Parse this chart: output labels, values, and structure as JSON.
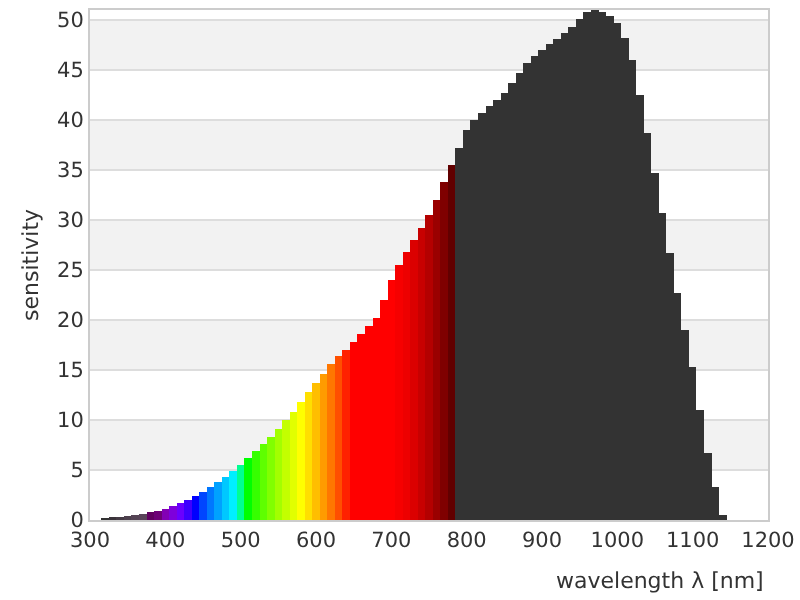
{
  "chart_data": {
    "type": "bar",
    "xlabel": "wavelength λ [nm]",
    "ylabel": "sensitivity",
    "x": [
      320,
      330,
      340,
      350,
      360,
      370,
      380,
      390,
      400,
      410,
      420,
      430,
      440,
      450,
      460,
      470,
      480,
      490,
      500,
      510,
      520,
      530,
      540,
      550,
      560,
      570,
      580,
      590,
      600,
      610,
      620,
      630,
      640,
      650,
      660,
      670,
      680,
      690,
      700,
      710,
      720,
      730,
      740,
      750,
      760,
      770,
      780,
      790,
      800,
      810,
      820,
      830,
      840,
      850,
      860,
      870,
      880,
      890,
      900,
      910,
      920,
      930,
      940,
      950,
      960,
      970,
      980,
      990,
      1000,
      1010,
      1020,
      1030,
      1040,
      1050,
      1060,
      1070,
      1080,
      1090,
      1100,
      1110,
      1120,
      1130,
      1140
    ],
    "values": [
      0.2,
      0.3,
      0.3,
      0.4,
      0.5,
      0.6,
      0.8,
      0.9,
      1.1,
      1.4,
      1.7,
      2.0,
      2.4,
      2.8,
      3.3,
      3.8,
      4.3,
      4.9,
      5.5,
      6.2,
      6.9,
      7.6,
      8.3,
      9.1,
      10.0,
      10.8,
      11.8,
      12.8,
      13.7,
      14.6,
      15.6,
      16.4,
      17.0,
      17.8,
      18.6,
      19.4,
      20.2,
      22.0,
      24.0,
      25.5,
      26.8,
      28.0,
      29.2,
      30.5,
      32.0,
      33.8,
      35.5,
      37.2,
      39.0,
      40.0,
      40.7,
      41.4,
      42.0,
      42.7,
      43.7,
      44.7,
      45.7,
      46.4,
      47.0,
      47.6,
      48.1,
      48.7,
      49.3,
      50.1,
      50.8,
      51.0,
      50.8,
      50.4,
      49.7,
      48.2,
      46.0,
      42.5,
      38.7,
      34.7,
      30.7,
      26.7,
      22.7,
      19.0,
      15.3,
      11.0,
      6.7,
      3.3,
      0.5
    ],
    "colors": [
      "#333333",
      "#3a333a",
      "#443a44",
      "#4d404d",
      "#554455",
      "#5a445a",
      "#610061",
      "#6e0077",
      "#8300b5",
      "#7e00db",
      "#6a00ff",
      "#3d00ff",
      "#0000ff",
      "#0046ff",
      "#0077ff",
      "#00a1ff",
      "#00c8ff",
      "#00efff",
      "#00ff92",
      "#00ff00",
      "#36ff00",
      "#5eff00",
      "#81ff00",
      "#a3ff00",
      "#c3ff00",
      "#e1ff00",
      "#ffff00",
      "#ffdf00",
      "#ffbe00",
      "#ff9b00",
      "#ff7700",
      "#ff4f00",
      "#ff2100",
      "#ff0000",
      "#ff0000",
      "#ff0000",
      "#ff0000",
      "#ff0000",
      "#ff0000",
      "#f60000",
      "#ed0000",
      "#db0000",
      "#c80000",
      "#b40000",
      "#9a0000",
      "#7f0000",
      "#610000",
      "#333333",
      "#333333",
      "#333333",
      "#333333",
      "#333333",
      "#333333",
      "#333333",
      "#333333",
      "#333333",
      "#333333",
      "#333333",
      "#333333",
      "#333333",
      "#333333",
      "#333333",
      "#333333",
      "#333333",
      "#333333",
      "#333333",
      "#333333",
      "#333333",
      "#333333",
      "#333333",
      "#333333",
      "#333333",
      "#333333",
      "#333333",
      "#333333",
      "#333333",
      "#333333",
      "#333333",
      "#333333",
      "#333333",
      "#333333",
      "#333333",
      "#333333"
    ],
    "xlim": [
      300,
      1200
    ],
    "xticks": [
      300,
      400,
      500,
      600,
      700,
      800,
      900,
      1000,
      1100,
      1200
    ],
    "ylim": [
      0,
      51
    ],
    "yticks": [
      0,
      5,
      10,
      15,
      20,
      25,
      30,
      35,
      40,
      45,
      50
    ],
    "grid": "y",
    "bands": [
      {
        "axis": "y",
        "from": 5,
        "to": 10,
        "color": "#f2f2f2"
      },
      {
        "axis": "y",
        "from": 15,
        "to": 20,
        "color": "#f2f2f2"
      },
      {
        "axis": "y",
        "from": 25,
        "to": 30,
        "color": "#f2f2f2"
      },
      {
        "axis": "y",
        "from": 35,
        "to": 40,
        "color": "#f2f2f2"
      },
      {
        "axis": "y",
        "from": 45,
        "to": 50,
        "color": "#f2f2f2"
      }
    ]
  }
}
